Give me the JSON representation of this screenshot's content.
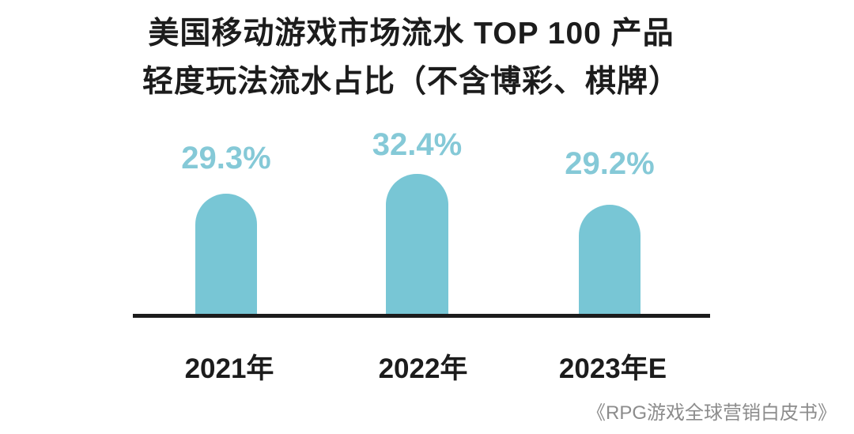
{
  "page": {
    "background": "#ffffff"
  },
  "title": {
    "line1": "美国移动游戏市场流水 TOP 100 产品",
    "line2": "轻度玩法流水占比（不含博彩、棋牌）"
  },
  "source": {
    "text": "《RPG游戏全球营销白皮书》"
  },
  "colors": {
    "bar": "#78c6d5",
    "value_label": "#85c9d7",
    "axis": "#1c1c1c",
    "title_text": "#1c1c1c",
    "x_label": "#1c1c1c",
    "source_text": "#8c8c8c"
  },
  "chart_data": {
    "type": "bar",
    "title": "美国移动游戏市场流水 TOP 100 产品 轻度玩法流水占比（不含博彩、棋牌）",
    "categories": [
      "2021年",
      "2022年",
      "2023年E"
    ],
    "values": [
      29.3,
      32.4,
      29.2
    ],
    "value_labels": [
      "29.3%",
      "32.4%",
      "29.2%"
    ],
    "unit": "%",
    "xlabel": "",
    "ylabel": "",
    "ylim": [
      0,
      36
    ],
    "grid": false,
    "legend": false,
    "bar_shape": "rounded-top",
    "source": "《RPG游戏全球营销白皮书》"
  }
}
